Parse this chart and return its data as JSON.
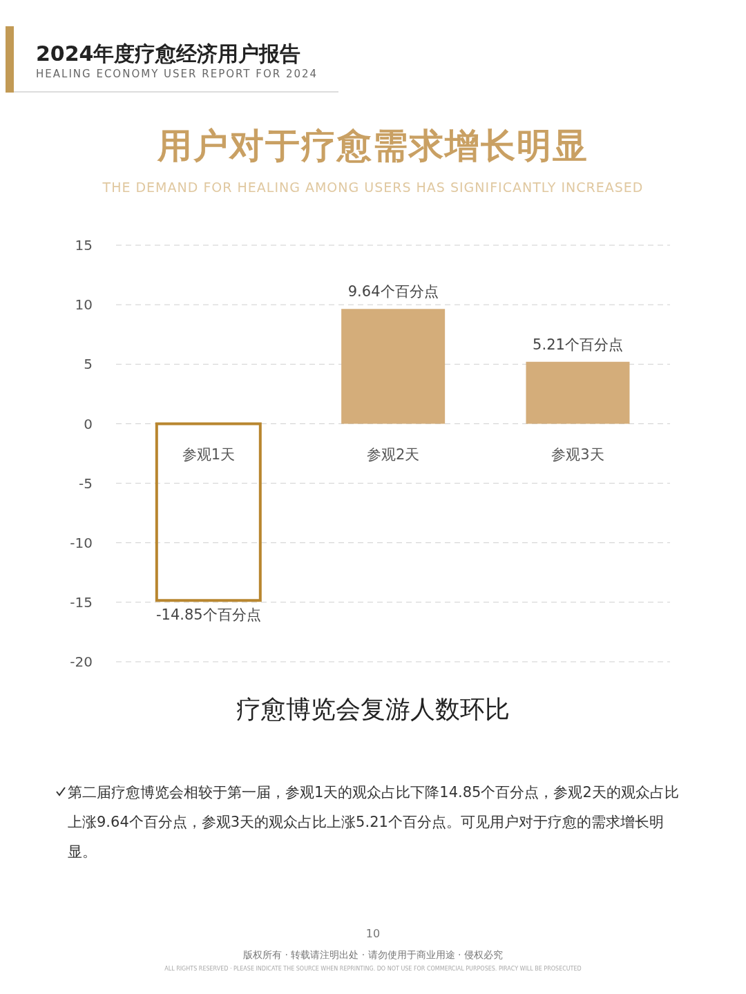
{
  "chart_data": {
    "type": "bar",
    "title": "用户对于疗愈需求增长明显",
    "subtitle": "THE DEMAND FOR HEALING AMONG USERS HAS SIGNIFICANTLY INCREASED",
    "xlabel": "疗愈博览会复游人数环比",
    "categories": [
      "参观1天",
      "参观2天",
      "参观3天"
    ],
    "values": [
      -14.85,
      9.64,
      5.21
    ],
    "value_labels": [
      "-14.85个百分点",
      "9.64个百分点",
      "5.21个百分点"
    ],
    "colors": [
      "#b8862f",
      "#d4ad7a",
      "#d4ad7a"
    ],
    "ylim": [
      -20,
      15
    ],
    "yticks": [
      -20,
      -15,
      -10,
      -5,
      0,
      5,
      10,
      15
    ],
    "grid": "y",
    "annotations": [
      "2024年度疗愈经济用户报告",
      "HEALING ECONOMY USER REPORT FOR 2024",
      "第二届疗愈博览会相较于第一届，参观1天的观众占比下降14.85个百分点，参观2天的观众占比上涨9.64个百分点，参观3天的观众占比上涨5.21个百分点。可见用户对于疗愈的需求增长明显。",
      "10",
      "版权所有 · 转载请注明出处 · 请勿使用于商业用途 · 侵权必究",
      "ALL RIGHTS RESERVED · PLEASE INDICATE THE SOURCE WHEN REPRINTING. DO NOT USE FOR COMMERCIAL PURPOSES. PIRACY WILL BE PROSECUTED"
    ]
  }
}
